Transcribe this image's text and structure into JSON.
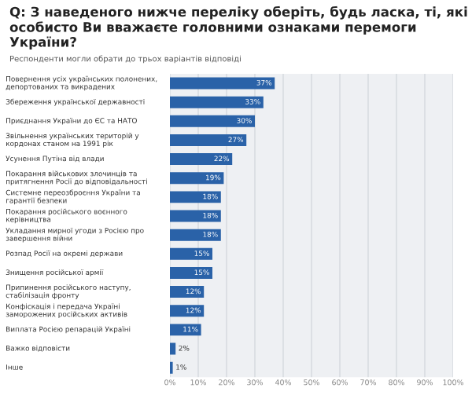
{
  "chart_data": {
    "type": "bar",
    "orientation": "horizontal",
    "title": "Q: З наведеного нижче переліку оберіть, будь ласка, ті, які особисто Ви вважаєте головними ознаками перемоги України?",
    "subtitle": "Респонденти могли обрати до трьох варіантів відповіді",
    "categories": [
      "Повернення усіх українських полонених, депортованих та викрадених",
      "Збереження української державності",
      "Приєднання України до ЄС та НАТО",
      "Звільнення українських територій у кордонах станом на 1991 рік",
      "Усунення Путіна від влади",
      "Покарання військових злочинців та притягнення Росії до відповідальності",
      "Системне переозброєння України та гарантії безпеки",
      "Покарання російського воєнного керівництва",
      "Укладання мирної угоди з Росією про завершення війни",
      "Розпад Росії на окремі держави",
      "Знищення російської армії",
      "Припинення російського наступу, стабілізація фронту",
      "Конфіскація і передача Україні заморожених російських активів",
      "Виплата Росією репарацій Україні",
      "Важко відповісти",
      "Інше"
    ],
    "values": [
      37,
      33,
      30,
      27,
      22,
      19,
      18,
      18,
      18,
      15,
      15,
      12,
      12,
      11,
      2,
      1
    ],
    "value_labels": [
      "37%",
      "33%",
      "30%",
      "27%",
      "22%",
      "19%",
      "18%",
      "18%",
      "18%",
      "15%",
      "15%",
      "12%",
      "12%",
      "11%",
      "2%",
      "1%"
    ],
    "color": "#2a62a8",
    "xlim": [
      0,
      100
    ],
    "xticks": [
      {
        "value": 0,
        "label": "0%"
      },
      {
        "value": 10,
        "label": "10%"
      },
      {
        "value": 20,
        "label": "20%"
      },
      {
        "value": 30,
        "label": "30%"
      },
      {
        "value": 40,
        "label": "40%"
      },
      {
        "value": 50,
        "label": "50%"
      },
      {
        "value": 60,
        "label": "60%"
      },
      {
        "value": 70,
        "label": "70%"
      },
      {
        "value": 80,
        "label": "80%"
      },
      {
        "value": 90,
        "label": "90%"
      },
      {
        "value": 100,
        "label": "100%"
      }
    ],
    "grid": "x"
  }
}
